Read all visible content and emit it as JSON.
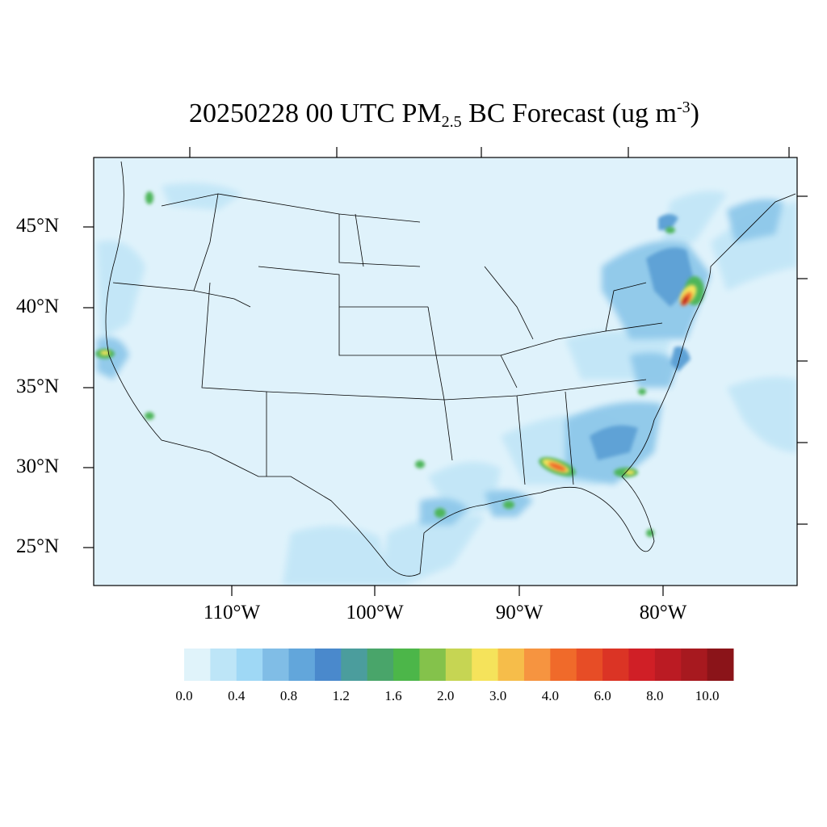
{
  "title": {
    "prefix": "20250228 00 UTC PM",
    "subscript": "2.5",
    "middle": " BC Forecast (ug m",
    "superscript": "-3",
    "suffix": ")"
  },
  "axes": {
    "lat_labels": [
      "45°N",
      "40°N",
      "35°N",
      "30°N",
      "25°N"
    ],
    "lon_labels": [
      "110°W",
      "100°W",
      "90°W",
      "80°W"
    ]
  },
  "colorbar": {
    "colors": [
      "#e0f3fa",
      "#bde5f7",
      "#9fd8f5",
      "#80bde6",
      "#62a6db",
      "#4a89cc",
      "#4b9d9d",
      "#49a56a",
      "#4cb649",
      "#84c24b",
      "#c6d553",
      "#f5e35b",
      "#f6bd4a",
      "#f69440",
      "#f06a2a",
      "#e74d26",
      "#db3425",
      "#d01f26",
      "#bb1b23",
      "#a7191f",
      "#8b1419"
    ],
    "labels": [
      "0.0",
      "0.4",
      "0.8",
      "1.2",
      "1.6",
      "2.0",
      "3.0",
      "4.0",
      "6.0",
      "8.0",
      "10.0"
    ]
  },
  "map": {
    "background_color": "#dff2fb",
    "region": "Contiguous United States"
  }
}
